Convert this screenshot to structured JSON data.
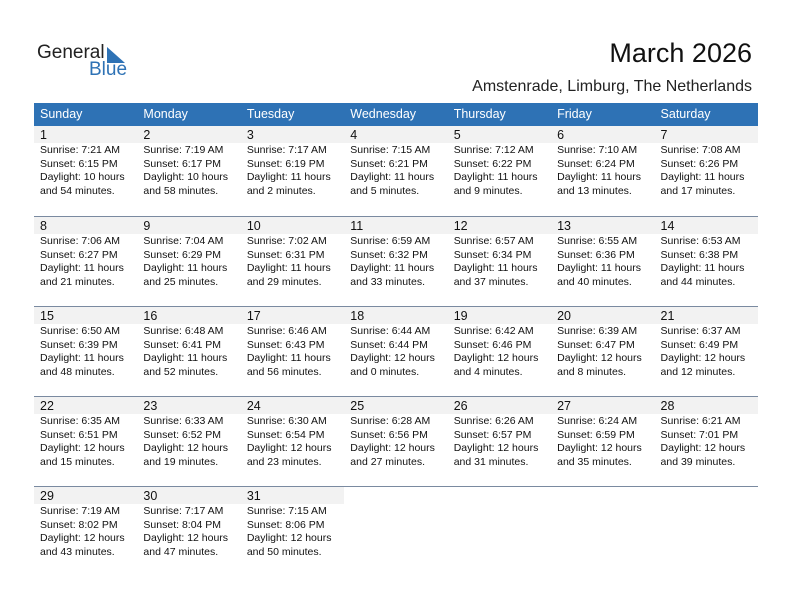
{
  "logo": {
    "text1": "General",
    "text2": "Blue"
  },
  "title": "March 2026",
  "location": "Amstenrade, Limburg, The Netherlands",
  "colors": {
    "header_bg": "#2e72b5",
    "day_bg": "#f2f2f2"
  },
  "weekdays": [
    "Sunday",
    "Monday",
    "Tuesday",
    "Wednesday",
    "Thursday",
    "Friday",
    "Saturday"
  ],
  "weeks": [
    [
      {
        "d": "1",
        "sr": "Sunrise: 7:21 AM",
        "ss": "Sunset: 6:15 PM",
        "dl1": "Daylight: 10 hours",
        "dl2": "and 54 minutes."
      },
      {
        "d": "2",
        "sr": "Sunrise: 7:19 AM",
        "ss": "Sunset: 6:17 PM",
        "dl1": "Daylight: 10 hours",
        "dl2": "and 58 minutes."
      },
      {
        "d": "3",
        "sr": "Sunrise: 7:17 AM",
        "ss": "Sunset: 6:19 PM",
        "dl1": "Daylight: 11 hours",
        "dl2": "and 2 minutes."
      },
      {
        "d": "4",
        "sr": "Sunrise: 7:15 AM",
        "ss": "Sunset: 6:21 PM",
        "dl1": "Daylight: 11 hours",
        "dl2": "and 5 minutes."
      },
      {
        "d": "5",
        "sr": "Sunrise: 7:12 AM",
        "ss": "Sunset: 6:22 PM",
        "dl1": "Daylight: 11 hours",
        "dl2": "and 9 minutes."
      },
      {
        "d": "6",
        "sr": "Sunrise: 7:10 AM",
        "ss": "Sunset: 6:24 PM",
        "dl1": "Daylight: 11 hours",
        "dl2": "and 13 minutes."
      },
      {
        "d": "7",
        "sr": "Sunrise: 7:08 AM",
        "ss": "Sunset: 6:26 PM",
        "dl1": "Daylight: 11 hours",
        "dl2": "and 17 minutes."
      }
    ],
    [
      {
        "d": "8",
        "sr": "Sunrise: 7:06 AM",
        "ss": "Sunset: 6:27 PM",
        "dl1": "Daylight: 11 hours",
        "dl2": "and 21 minutes."
      },
      {
        "d": "9",
        "sr": "Sunrise: 7:04 AM",
        "ss": "Sunset: 6:29 PM",
        "dl1": "Daylight: 11 hours",
        "dl2": "and 25 minutes."
      },
      {
        "d": "10",
        "sr": "Sunrise: 7:02 AM",
        "ss": "Sunset: 6:31 PM",
        "dl1": "Daylight: 11 hours",
        "dl2": "and 29 minutes."
      },
      {
        "d": "11",
        "sr": "Sunrise: 6:59 AM",
        "ss": "Sunset: 6:32 PM",
        "dl1": "Daylight: 11 hours",
        "dl2": "and 33 minutes."
      },
      {
        "d": "12",
        "sr": "Sunrise: 6:57 AM",
        "ss": "Sunset: 6:34 PM",
        "dl1": "Daylight: 11 hours",
        "dl2": "and 37 minutes."
      },
      {
        "d": "13",
        "sr": "Sunrise: 6:55 AM",
        "ss": "Sunset: 6:36 PM",
        "dl1": "Daylight: 11 hours",
        "dl2": "and 40 minutes."
      },
      {
        "d": "14",
        "sr": "Sunrise: 6:53 AM",
        "ss": "Sunset: 6:38 PM",
        "dl1": "Daylight: 11 hours",
        "dl2": "and 44 minutes."
      }
    ],
    [
      {
        "d": "15",
        "sr": "Sunrise: 6:50 AM",
        "ss": "Sunset: 6:39 PM",
        "dl1": "Daylight: 11 hours",
        "dl2": "and 48 minutes."
      },
      {
        "d": "16",
        "sr": "Sunrise: 6:48 AM",
        "ss": "Sunset: 6:41 PM",
        "dl1": "Daylight: 11 hours",
        "dl2": "and 52 minutes."
      },
      {
        "d": "17",
        "sr": "Sunrise: 6:46 AM",
        "ss": "Sunset: 6:43 PM",
        "dl1": "Daylight: 11 hours",
        "dl2": "and 56 minutes."
      },
      {
        "d": "18",
        "sr": "Sunrise: 6:44 AM",
        "ss": "Sunset: 6:44 PM",
        "dl1": "Daylight: 12 hours",
        "dl2": "and 0 minutes."
      },
      {
        "d": "19",
        "sr": "Sunrise: 6:42 AM",
        "ss": "Sunset: 6:46 PM",
        "dl1": "Daylight: 12 hours",
        "dl2": "and 4 minutes."
      },
      {
        "d": "20",
        "sr": "Sunrise: 6:39 AM",
        "ss": "Sunset: 6:47 PM",
        "dl1": "Daylight: 12 hours",
        "dl2": "and 8 minutes."
      },
      {
        "d": "21",
        "sr": "Sunrise: 6:37 AM",
        "ss": "Sunset: 6:49 PM",
        "dl1": "Daylight: 12 hours",
        "dl2": "and 12 minutes."
      }
    ],
    [
      {
        "d": "22",
        "sr": "Sunrise: 6:35 AM",
        "ss": "Sunset: 6:51 PM",
        "dl1": "Daylight: 12 hours",
        "dl2": "and 15 minutes."
      },
      {
        "d": "23",
        "sr": "Sunrise: 6:33 AM",
        "ss": "Sunset: 6:52 PM",
        "dl1": "Daylight: 12 hours",
        "dl2": "and 19 minutes."
      },
      {
        "d": "24",
        "sr": "Sunrise: 6:30 AM",
        "ss": "Sunset: 6:54 PM",
        "dl1": "Daylight: 12 hours",
        "dl2": "and 23 minutes."
      },
      {
        "d": "25",
        "sr": "Sunrise: 6:28 AM",
        "ss": "Sunset: 6:56 PM",
        "dl1": "Daylight: 12 hours",
        "dl2": "and 27 minutes."
      },
      {
        "d": "26",
        "sr": "Sunrise: 6:26 AM",
        "ss": "Sunset: 6:57 PM",
        "dl1": "Daylight: 12 hours",
        "dl2": "and 31 minutes."
      },
      {
        "d": "27",
        "sr": "Sunrise: 6:24 AM",
        "ss": "Sunset: 6:59 PM",
        "dl1": "Daylight: 12 hours",
        "dl2": "and 35 minutes."
      },
      {
        "d": "28",
        "sr": "Sunrise: 6:21 AM",
        "ss": "Sunset: 7:01 PM",
        "dl1": "Daylight: 12 hours",
        "dl2": "and 39 minutes."
      }
    ],
    [
      {
        "d": "29",
        "sr": "Sunrise: 7:19 AM",
        "ss": "Sunset: 8:02 PM",
        "dl1": "Daylight: 12 hours",
        "dl2": "and 43 minutes."
      },
      {
        "d": "30",
        "sr": "Sunrise: 7:17 AM",
        "ss": "Sunset: 8:04 PM",
        "dl1": "Daylight: 12 hours",
        "dl2": "and 47 minutes."
      },
      {
        "d": "31",
        "sr": "Sunrise: 7:15 AM",
        "ss": "Sunset: 8:06 PM",
        "dl1": "Daylight: 12 hours",
        "dl2": "and 50 minutes."
      }
    ]
  ]
}
